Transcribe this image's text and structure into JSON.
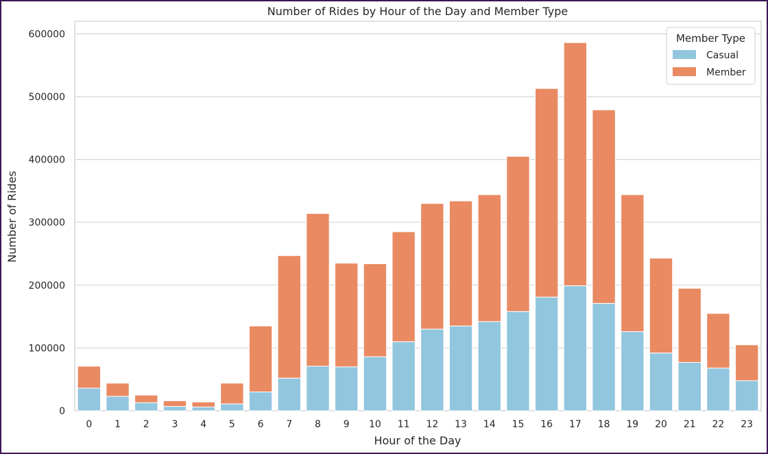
{
  "chart_data": {
    "type": "bar",
    "stacked": true,
    "title": "Number of Rides by Hour of the Day and Member Type",
    "xlabel": "Hour of the Day",
    "ylabel": "Number of Rides",
    "ylim": [
      0,
      620000
    ],
    "yticks": [
      0,
      100000,
      200000,
      300000,
      400000,
      500000,
      600000
    ],
    "grid": true,
    "legend": {
      "title": "Member Type",
      "placement": "top-right"
    },
    "categories": [
      "0",
      "1",
      "2",
      "3",
      "4",
      "5",
      "6",
      "7",
      "8",
      "9",
      "10",
      "11",
      "12",
      "13",
      "14",
      "15",
      "16",
      "17",
      "18",
      "19",
      "20",
      "21",
      "22",
      "23"
    ],
    "series": [
      {
        "name": "Casual",
        "color": "#92c6de",
        "values": [
          36000,
          23000,
          13000,
          7000,
          6000,
          11000,
          30000,
          52000,
          71000,
          70000,
          86000,
          110000,
          130000,
          135000,
          142000,
          158000,
          181000,
          199000,
          171000,
          126000,
          92000,
          77000,
          68000,
          48000
        ]
      },
      {
        "name": "Member",
        "color": "#e98a62",
        "values": [
          35000,
          21000,
          12000,
          9000,
          8000,
          33000,
          105000,
          195000,
          243000,
          165000,
          148000,
          175000,
          200000,
          199000,
          202000,
          247000,
          332000,
          387000,
          308000,
          218000,
          151000,
          118000,
          87000,
          57000
        ]
      }
    ]
  }
}
